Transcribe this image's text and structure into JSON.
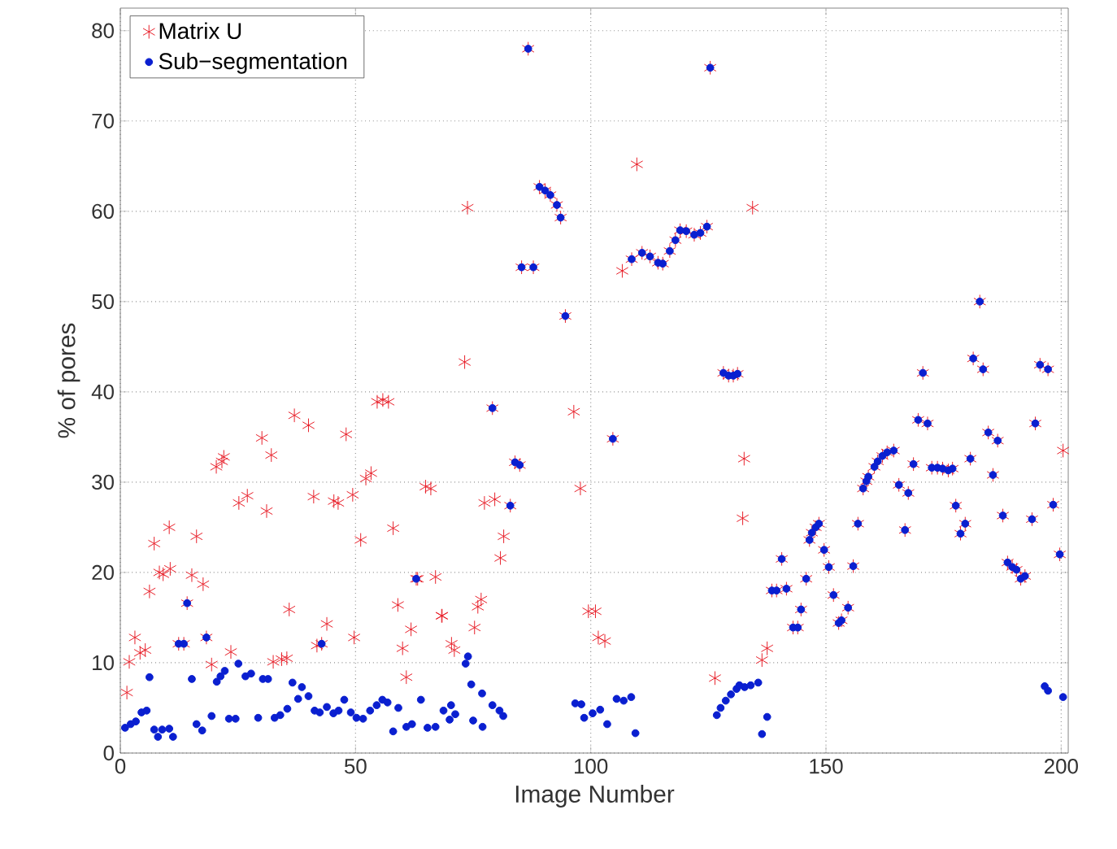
{
  "chart_data": {
    "type": "scatter",
    "xlabel": "Image Number",
    "ylabel": "% of pores",
    "xlim": [
      0,
      201.5
    ],
    "ylim": [
      0,
      82.5
    ],
    "xticks": [
      0,
      50,
      100,
      150,
      200
    ],
    "yticks": [
      0,
      10,
      20,
      30,
      40,
      50,
      60,
      70,
      80
    ],
    "grid": true,
    "legend": "top left",
    "series": [
      {
        "name": "Matrix U",
        "color": "#e8202a",
        "marker": "cross",
        "x": [
          1.4,
          1.9,
          3.1,
          4.2,
          5.3,
          6.2,
          7.2,
          8.3,
          9.1,
          10.4,
          10.6,
          15.2,
          16.2,
          17.6,
          19.4,
          20.4,
          21.6,
          22,
          23.5,
          25.2,
          27,
          30.1,
          31.1,
          32.1,
          32.5,
          34.3,
          35.4,
          35.9,
          37,
          40,
          41.1,
          41.8,
          43.9,
          45.4,
          46.3,
          48,
          49.4,
          49.7,
          51.1,
          52.2,
          53.3,
          54.6,
          55.8,
          57,
          58,
          59,
          60,
          60.8,
          61.8,
          63.2,
          64.9,
          66,
          67,
          68.3,
          68.4,
          70.4,
          71,
          73.2,
          73.8,
          75.3,
          76,
          76.7,
          77.4,
          79.6,
          80.8,
          81.5,
          96.4,
          97.8,
          99.5,
          101,
          101.6,
          103,
          106.7,
          109.8,
          126.4,
          132.3,
          132.6,
          134.4,
          136.4,
          137.5,
          200.4,
          12.4,
          13.5,
          14.2,
          18.3,
          42.8,
          62.9,
          79.1,
          82.9,
          83.9,
          84.9,
          85.3,
          86.7,
          87.8,
          89.1,
          90.3,
          91.4,
          92.8,
          93.6,
          94.6,
          104.7,
          108.7,
          110.9,
          112.6,
          114.3,
          115.3,
          116.8,
          118,
          119,
          120.3,
          122,
          123.3,
          124.7,
          125.4,
          128.2,
          129.3,
          130.3,
          131.2,
          138.5,
          139.5,
          140.6,
          141.6,
          143,
          144,
          144.7,
          145.8,
          146.5,
          147,
          147.8,
          148.5,
          149.6,
          150.6,
          151.6,
          152.7,
          153.3,
          154.7,
          155.8,
          156.8,
          157.9,
          158.6,
          159,
          160.3,
          161,
          162,
          163,
          164.4,
          165.5,
          166.8,
          167.5,
          168.6,
          169.6,
          170.6,
          171.6,
          172.5,
          173.7,
          174.8,
          176,
          176.9,
          177.6,
          178.6,
          179.6,
          180.7,
          181.3,
          182.7,
          183.4,
          184.5,
          185.5,
          186.5,
          187.6,
          188.6,
          189.6,
          190.5,
          191.4,
          192.3,
          193.8,
          194.5,
          195.5,
          197.2,
          198.3,
          199.7
        ],
        "values": [
          6.7,
          10.1,
          12.8,
          11.1,
          11.4,
          17.9,
          23.2,
          20,
          19.8,
          25,
          20.4,
          19.7,
          24,
          18.7,
          9.8,
          31.7,
          32.3,
          32.8,
          11.2,
          27.7,
          28.5,
          34.9,
          26.8,
          33,
          10.1,
          10.4,
          10.5,
          15.9,
          37.4,
          36.3,
          28.4,
          11.9,
          14.3,
          27.9,
          27.7,
          35.3,
          28.6,
          12.8,
          23.6,
          30.4,
          31,
          38.9,
          39.1,
          38.9,
          24.9,
          16.4,
          11.6,
          8.4,
          13.7,
          19.3,
          29.5,
          29.3,
          19.5,
          15.2,
          15.2,
          12.1,
          11.4,
          43.3,
          60.4,
          13.9,
          16.2,
          17,
          27.7,
          28.1,
          21.6,
          24,
          37.8,
          29.3,
          15.7,
          15.7,
          12.8,
          12.4,
          53.4,
          65.2,
          8.3,
          26,
          32.6,
          60.4,
          10.3,
          11.6,
          33.5,
          12.1,
          12.1,
          16.6,
          12.8,
          12.1,
          19.3,
          38.2,
          27.4,
          32.2,
          31.9,
          53.8,
          78,
          53.8,
          62.7,
          62.3,
          61.8,
          60.7,
          59.3,
          48.4,
          34.8,
          54.7,
          55.4,
          55,
          54.3,
          54.2,
          55.6,
          56.8,
          57.9,
          57.8,
          57.4,
          57.6,
          58.3,
          75.9,
          42.1,
          41.8,
          41.8,
          42,
          18,
          18,
          21.5,
          18.2,
          13.9,
          13.9,
          15.9,
          19.3,
          23.6,
          24.4,
          25,
          25.4,
          22.5,
          20.6,
          17.5,
          14.4,
          14.7,
          16.1,
          20.7,
          25.4,
          29.3,
          30.1,
          30.6,
          31.7,
          32.3,
          32.9,
          33.3,
          33.5,
          29.7,
          24.7,
          28.8,
          32,
          36.9,
          42.1,
          36.5,
          31.6,
          31.6,
          31.5,
          31.3,
          31.5,
          27.4,
          24.3,
          25.4,
          32.6,
          43.7,
          50,
          42.5,
          35.5,
          30.8,
          34.6,
          26.3,
          21.1,
          20.6,
          20.3,
          19.3,
          19.6,
          25.9,
          36.5,
          43,
          42.5,
          27.5,
          22
        ]
      },
      {
        "name": "Sub−segmentation",
        "color": "#0a1fd0",
        "marker": "circle",
        "x": [
          1,
          2.2,
          3.3,
          4.5,
          5.6,
          6.2,
          7.2,
          8,
          8.9,
          10.4,
          11.2,
          15.2,
          16.2,
          17.4,
          19.4,
          20.5,
          21.3,
          22.2,
          23.1,
          24.5,
          25.1,
          26.6,
          27.8,
          29.3,
          30.3,
          31.4,
          32.8,
          34,
          35.5,
          36.6,
          37.8,
          38.6,
          40,
          41.3,
          42.4,
          43.9,
          45.3,
          46.4,
          47.6,
          49,
          50.2,
          51.6,
          53.1,
          54.5,
          55.7,
          56.8,
          58,
          59.1,
          60.8,
          62,
          63.9,
          65.3,
          67,
          68.7,
          70,
          70.3,
          71.2,
          73.4,
          73.9,
          74.6,
          75,
          76.9,
          77,
          79.1,
          80.6,
          81.4,
          96.7,
          98,
          98.6,
          100.4,
          102,
          103.5,
          105.5,
          107,
          108.6,
          109.5,
          126.8,
          127.6,
          128.7,
          129.8,
          131,
          131.6,
          132.7,
          134,
          135.6,
          136.4,
          137.5,
          196.5,
          197.2,
          200.4,
          12.4,
          13.5,
          14.2,
          18.3,
          42.8,
          62.9,
          79.1,
          82.9,
          83.9,
          84.9,
          85.3,
          86.7,
          87.8,
          89.1,
          90.3,
          91.4,
          92.8,
          93.6,
          94.6,
          104.7,
          108.7,
          110.9,
          112.6,
          114.3,
          115.3,
          116.8,
          118,
          119,
          120.3,
          122,
          123.3,
          124.7,
          125.4,
          128.2,
          129.3,
          130.3,
          131.2,
          138.5,
          139.5,
          140.6,
          141.6,
          143,
          144,
          144.7,
          145.8,
          146.5,
          147,
          147.8,
          148.5,
          149.6,
          150.6,
          151.6,
          152.7,
          153.3,
          154.7,
          155.8,
          156.8,
          157.9,
          158.6,
          159,
          160.3,
          161,
          162,
          163,
          164.4,
          165.5,
          166.8,
          167.5,
          168.6,
          169.6,
          170.6,
          171.6,
          172.5,
          173.7,
          174.8,
          176,
          176.9,
          177.6,
          178.6,
          179.6,
          180.7,
          181.3,
          182.7,
          183.4,
          184.5,
          185.5,
          186.5,
          187.6,
          188.6,
          189.6,
          190.5,
          191.4,
          192.3,
          193.8,
          194.5,
          195.5,
          197.2,
          198.3,
          199.7
        ],
        "values": [
          2.8,
          3.2,
          3.5,
          4.5,
          4.7,
          8.4,
          2.6,
          1.8,
          2.6,
          2.7,
          1.8,
          8.2,
          3.2,
          2.5,
          4.1,
          7.9,
          8.5,
          9.1,
          3.8,
          3.8,
          9.9,
          8.5,
          8.8,
          3.9,
          8.2,
          8.2,
          3.9,
          4.2,
          4.9,
          7.8,
          6,
          7.3,
          6.3,
          4.7,
          4.5,
          5.1,
          4.4,
          4.7,
          5.9,
          4.5,
          3.9,
          3.8,
          4.7,
          5.3,
          5.9,
          5.6,
          2.4,
          5,
          2.9,
          3.2,
          5.9,
          2.8,
          2.9,
          4.7,
          3.7,
          5.3,
          4.3,
          9.9,
          10.7,
          7.6,
          3.6,
          6.6,
          2.9,
          5.3,
          4.7,
          4.1,
          5.5,
          5.4,
          3.9,
          4.4,
          4.8,
          3.2,
          6,
          5.8,
          6.2,
          2.2,
          4.2,
          5,
          5.8,
          6.5,
          7.1,
          7.5,
          7.3,
          7.5,
          7.8,
          2.1,
          4,
          7.4,
          6.9,
          6.2,
          12.1,
          12.1,
          16.6,
          12.8,
          12.1,
          19.3,
          38.2,
          27.4,
          32.2,
          31.9,
          53.8,
          78,
          53.8,
          62.7,
          62.3,
          61.8,
          60.7,
          59.3,
          48.4,
          34.8,
          54.7,
          55.4,
          55,
          54.3,
          54.2,
          55.6,
          56.8,
          57.9,
          57.8,
          57.4,
          57.6,
          58.3,
          75.9,
          42.1,
          41.8,
          41.8,
          42,
          18,
          18,
          21.5,
          18.2,
          13.9,
          13.9,
          15.9,
          19.3,
          23.6,
          24.4,
          25,
          25.4,
          22.5,
          20.6,
          17.5,
          14.4,
          14.7,
          16.1,
          20.7,
          25.4,
          29.3,
          30.1,
          30.6,
          31.7,
          32.3,
          32.9,
          33.3,
          33.5,
          29.7,
          24.7,
          28.8,
          32,
          36.9,
          42.1,
          36.5,
          31.6,
          31.6,
          31.5,
          31.3,
          31.5,
          27.4,
          24.3,
          25.4,
          32.6,
          43.7,
          50,
          42.5,
          35.5,
          30.8,
          34.6,
          26.3,
          21.1,
          20.6,
          20.3,
          19.3,
          19.6,
          25.9,
          36.5,
          43,
          42.5,
          27.5,
          22
        ]
      }
    ]
  }
}
